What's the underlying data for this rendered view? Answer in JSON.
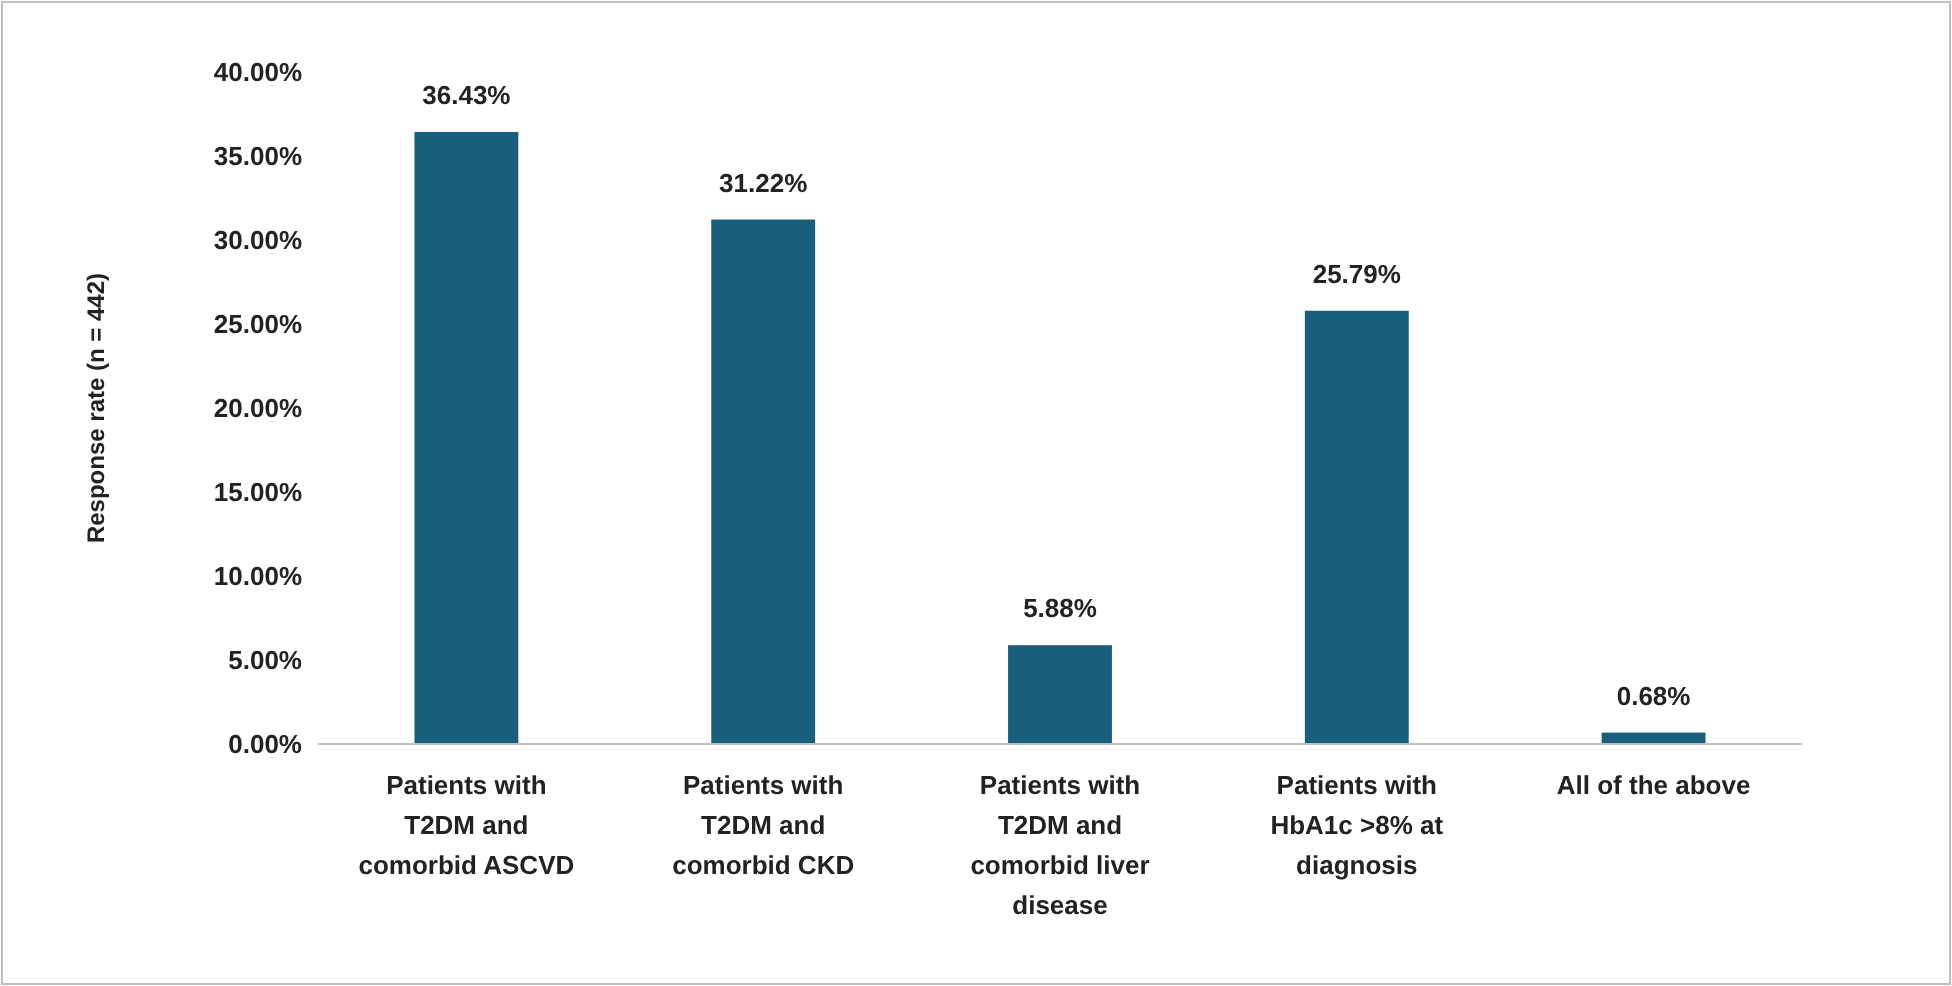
{
  "chart_data": {
    "type": "bar",
    "ylabel": "Response rate (n = 442)",
    "categories": [
      "Patients with T2DM and comorbid ASCVD",
      "Patients with T2DM and comorbid CKD",
      "Patients with T2DM and comorbid liver disease",
      "Patients with HbA1c >8% at diagnosis",
      "All of the above"
    ],
    "values": [
      36.43,
      31.22,
      5.88,
      25.79,
      0.68
    ],
    "value_labels": [
      "36.43%",
      "31.22%",
      "5.88%",
      "25.79%",
      "0.68%"
    ],
    "color": "#195e7c",
    "ylim": [
      0,
      40
    ],
    "yticks": [
      {
        "value": 0,
        "label": "0.00%"
      },
      {
        "value": 5,
        "label": "5.00%"
      },
      {
        "value": 10,
        "label": "10.00%"
      },
      {
        "value": 15,
        "label": "15.00%"
      },
      {
        "value": 20,
        "label": "20.00%"
      },
      {
        "value": 25,
        "label": "25.00%"
      },
      {
        "value": 30,
        "label": "30.00%"
      },
      {
        "value": 35,
        "label": "35.00%"
      },
      {
        "value": 40,
        "label": "40.00%"
      }
    ],
    "grid": false
  }
}
